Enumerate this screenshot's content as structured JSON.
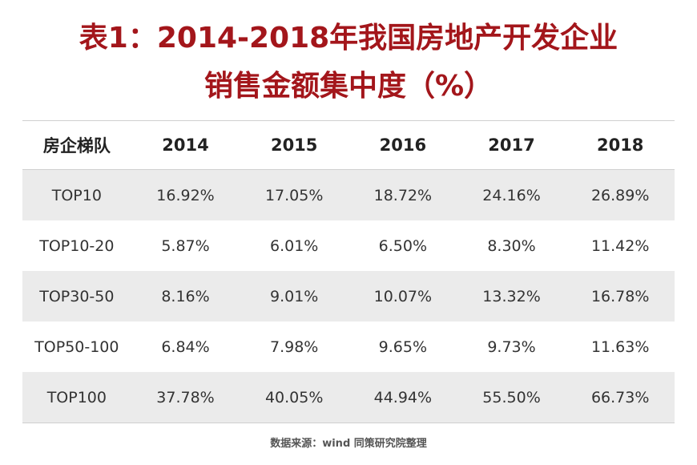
{
  "title_line1": "表1：2014-2018年我国房地产开发企业",
  "title_line2": "销售金额集中度（%）",
  "source": "数据来源：wind 同策研究院整理",
  "colors": {
    "title": "#a3161b",
    "row_shade": "#ebebeb",
    "rule": "#cfcfcf",
    "text": "#333333"
  },
  "chart_data": {
    "type": "table",
    "title": "表1：2014-2018年我国房地产开发企业销售金额集中度（%）",
    "headers": [
      "房企梯队",
      "2014",
      "2015",
      "2016",
      "2017",
      "2018"
    ],
    "rows": [
      [
        "TOP10",
        "16.92%",
        "17.05%",
        "18.72%",
        "24.16%",
        "26.89%"
      ],
      [
        "TOP10-20",
        "5.87%",
        "6.01%",
        "6.50%",
        "8.30%",
        "11.42%"
      ],
      [
        "TOP30-50",
        "8.16%",
        "9.01%",
        "10.07%",
        "13.32%",
        "16.78%"
      ],
      [
        "TOP50-100",
        "6.84%",
        "7.98%",
        "9.65%",
        "9.73%",
        "11.63%"
      ],
      [
        "TOP100",
        "37.78%",
        "40.05%",
        "44.94%",
        "55.50%",
        "66.73%"
      ]
    ]
  }
}
